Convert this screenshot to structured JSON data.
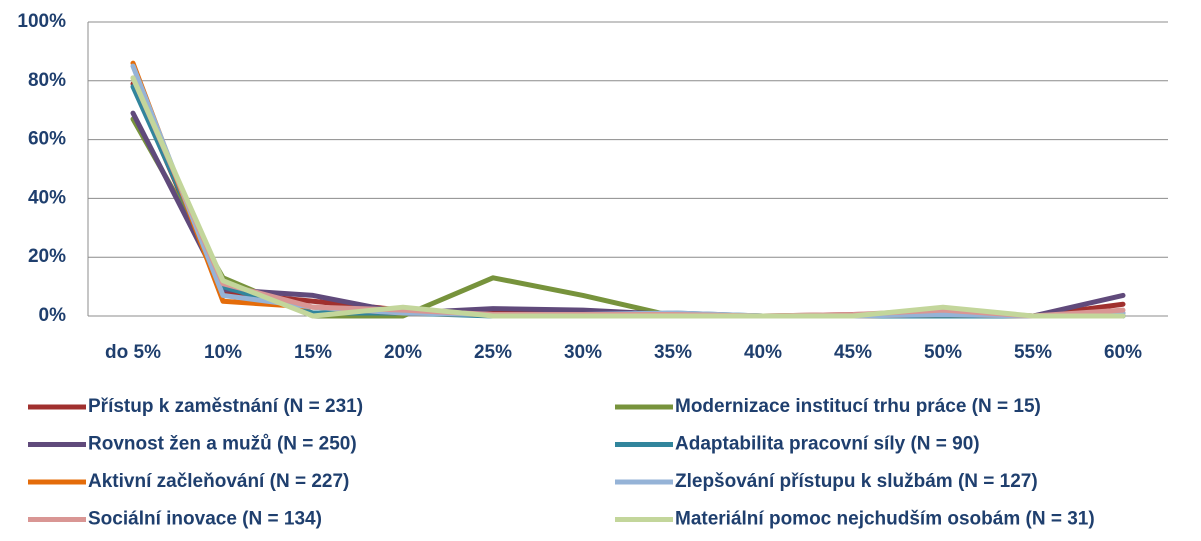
{
  "chart_data": {
    "type": "line",
    "categories": [
      "do 5%",
      "10%",
      "15%",
      "20%",
      "25%",
      "30%",
      "35%",
      "40%",
      "45%",
      "50%",
      "55%",
      "60%"
    ],
    "series": [
      {
        "name": "Přístup k zaměstnání (N = 231)",
        "color": "#a0302e",
        "values": [
          79,
          8,
          5,
          2,
          1,
          1,
          0.5,
          0,
          0.5,
          1,
          0,
          4
        ]
      },
      {
        "name": "Modernizace institucí trhu práce (N = 15)",
        "color": "#77933c",
        "values": [
          67,
          13,
          0,
          0,
          13,
          7,
          0,
          0,
          0,
          0,
          0,
          0
        ]
      },
      {
        "name": "Rovnost žen a mužů (N = 250)",
        "color": "#604a7b",
        "values": [
          69,
          9,
          7,
          1,
          2.5,
          2,
          0.5,
          0,
          0,
          1,
          0,
          7
        ]
      },
      {
        "name": "Adaptabilita pracovní síly (N = 90)",
        "color": "#31859c",
        "values": [
          78,
          10,
          1,
          1,
          0,
          0,
          1,
          0,
          0,
          0,
          0,
          0
        ]
      },
      {
        "name": "Aktivní začleňování (N = 227)",
        "color": "#e46c0a",
        "values": [
          86,
          5,
          3,
          1,
          0.5,
          0.5,
          0,
          0,
          0,
          0.5,
          0,
          1
        ]
      },
      {
        "name": "Zlepšování přístupu k službám (N = 127)",
        "color": "#95b3d7",
        "values": [
          85,
          7,
          3,
          1,
          0.5,
          0.5,
          1,
          0,
          0,
          0.5,
          0,
          1
        ]
      },
      {
        "name": "Sociální inovace (N = 134)",
        "color": "#d99694",
        "values": [
          81,
          11,
          3,
          2,
          0.5,
          0.5,
          0.5,
          0,
          0.5,
          2,
          0,
          2
        ]
      },
      {
        "name": "Materiální pomoc nejchudším osobám (N = 31)",
        "color": "#c3d69b",
        "values": [
          81,
          12,
          0,
          3,
          0,
          0,
          0,
          0,
          0,
          3,
          0,
          0
        ]
      }
    ],
    "ylim": [
      0,
      100
    ],
    "yticks": [
      {
        "value": 0,
        "label": "0%"
      },
      {
        "value": 20,
        "label": "20%"
      },
      {
        "value": 40,
        "label": "40%"
      },
      {
        "value": 60,
        "label": "60%"
      },
      {
        "value": 80,
        "label": "80%"
      },
      {
        "value": 100,
        "label": "100%"
      }
    ],
    "grid": true
  }
}
